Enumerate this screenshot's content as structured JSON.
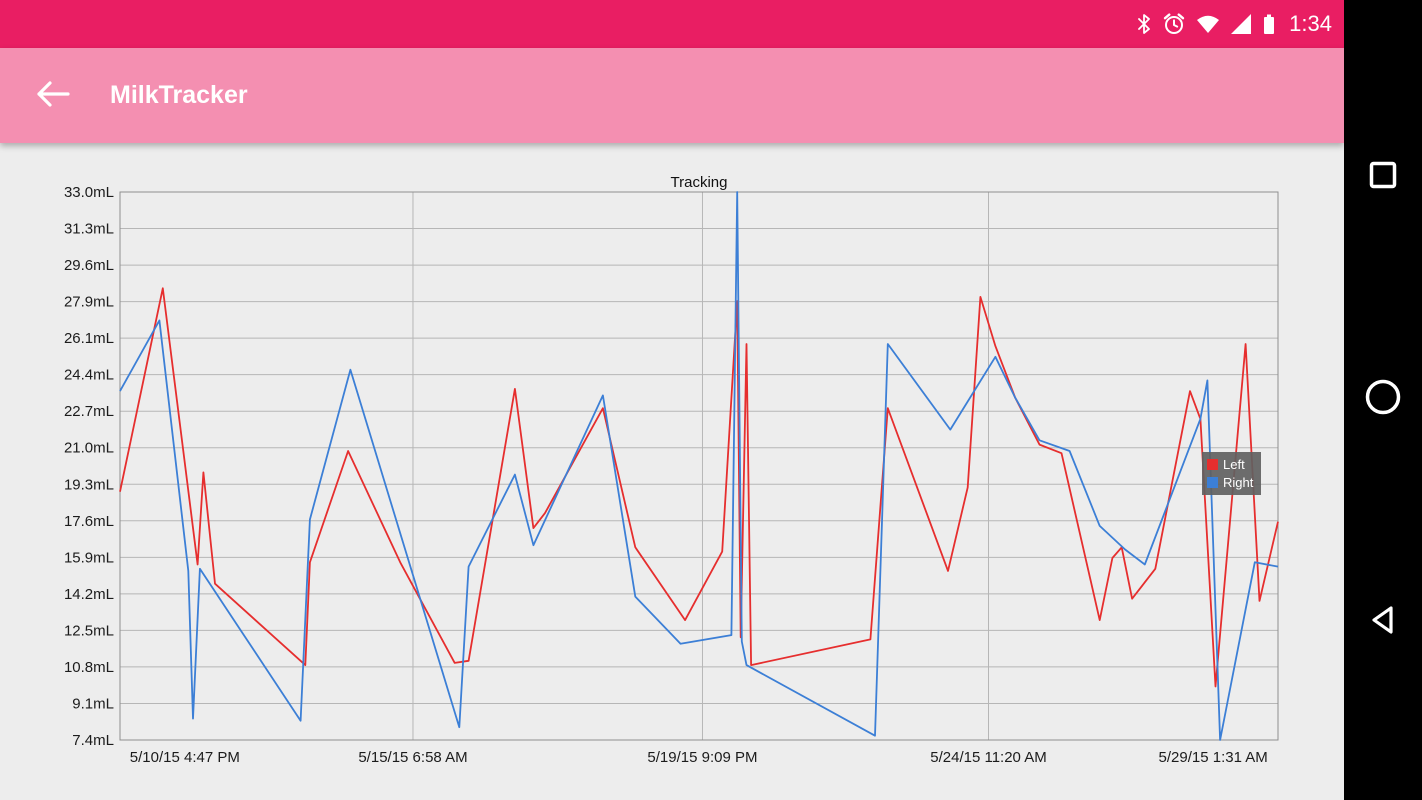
{
  "status_bar": {
    "time": "1:34",
    "icons": [
      "bluetooth-icon",
      "alarm-icon",
      "wifi-icon",
      "signal-strength-icon",
      "battery-icon"
    ]
  },
  "app_bar": {
    "title": "MilkTracker",
    "back_button": "back-arrow"
  },
  "nav_bar": {
    "buttons": [
      "recents",
      "home",
      "back"
    ]
  },
  "colors": {
    "status_bar_bg": "#e91e63",
    "app_bar_bg": "#f48fb1",
    "content_bg": "#ededed",
    "nav_bar_bg": "#000000",
    "grid_line": "#b6b6b6",
    "grid_border": "#8f8f8f",
    "axis_text": "#1c1c1c",
    "left_series": "#e62e2e",
    "right_series": "#3c7fd6",
    "legend_bg": "rgba(97,97,97,0.92)"
  },
  "chart_data": {
    "type": "line",
    "title": "Tracking",
    "y_unit": "mL",
    "y_min": 7.4,
    "y_max": 33.0,
    "y_ticks": [
      "33.0mL",
      "31.3mL",
      "29.6mL",
      "27.9mL",
      "26.1mL",
      "24.4mL",
      "22.7mL",
      "21.0mL",
      "19.3mL",
      "17.6mL",
      "15.9mL",
      "14.2mL",
      "12.5mL",
      "10.8mL",
      "9.1mL",
      "7.4mL"
    ],
    "x_ticks": [
      "5/10/15 4:47 PM",
      "5/15/15 6:58 AM",
      "5/19/15 9:09 PM",
      "5/24/15 11:20 AM",
      "5/29/15 1:31 AM"
    ],
    "x_tick_positions": [
      0,
      25.3,
      50.3,
      75.0,
      100
    ],
    "x_label_positions": [
      5.6,
      25.3,
      50.3,
      75.0,
      94.4
    ],
    "grid": true,
    "legend_position": "right-middle",
    "legend": [
      {
        "name": "Left",
        "color": "#e62e2e"
      },
      {
        "name": "Right",
        "color": "#3c7fd6"
      }
    ],
    "series": [
      {
        "name": "Left",
        "color": "#e62e2e",
        "points": [
          [
            0,
            19.0
          ],
          [
            3.7,
            28.5
          ],
          [
            6.7,
            15.6
          ],
          [
            7.2,
            19.9
          ],
          [
            8.2,
            14.7
          ],
          [
            16.0,
            10.9
          ],
          [
            16.4,
            15.7
          ],
          [
            19.7,
            20.9
          ],
          [
            24.2,
            15.7
          ],
          [
            28.9,
            11.0
          ],
          [
            30.1,
            11.1
          ],
          [
            34.1,
            23.8
          ],
          [
            35.7,
            17.3
          ],
          [
            36.7,
            18.0
          ],
          [
            41.7,
            22.9
          ],
          [
            44.5,
            16.4
          ],
          [
            48.8,
            13.0
          ],
          [
            52.0,
            16.2
          ],
          [
            53.3,
            27.9
          ],
          [
            53.6,
            12.2
          ],
          [
            54.1,
            25.9
          ],
          [
            54.5,
            10.9
          ],
          [
            64.8,
            12.1
          ],
          [
            66.3,
            22.9
          ],
          [
            71.5,
            15.3
          ],
          [
            73.2,
            19.2
          ],
          [
            74.3,
            28.1
          ],
          [
            75.6,
            25.8
          ],
          [
            77.3,
            23.4
          ],
          [
            79.4,
            21.2
          ],
          [
            81.3,
            20.8
          ],
          [
            84.6,
            13.0
          ],
          [
            85.7,
            15.9
          ],
          [
            86.5,
            16.4
          ],
          [
            87.4,
            14.0
          ],
          [
            89.4,
            15.4
          ],
          [
            92.4,
            23.7
          ],
          [
            93.3,
            22.4
          ],
          [
            94.6,
            9.9
          ],
          [
            97.2,
            25.9
          ],
          [
            98.4,
            13.9
          ],
          [
            100,
            17.6
          ]
        ]
      },
      {
        "name": "Right",
        "color": "#3c7fd6",
        "points": [
          [
            0,
            23.7
          ],
          [
            3.4,
            27.0
          ],
          [
            5.9,
            15.3
          ],
          [
            6.3,
            8.4
          ],
          [
            6.9,
            15.4
          ],
          [
            15.6,
            8.3
          ],
          [
            16.4,
            17.7
          ],
          [
            19.9,
            24.7
          ],
          [
            29.3,
            8.0
          ],
          [
            30.1,
            15.5
          ],
          [
            34.1,
            19.8
          ],
          [
            35.7,
            16.5
          ],
          [
            41.7,
            23.5
          ],
          [
            44.5,
            14.1
          ],
          [
            48.4,
            11.9
          ],
          [
            52.8,
            12.3
          ],
          [
            53.3,
            33.0
          ],
          [
            53.7,
            12.0
          ],
          [
            54.1,
            10.9
          ],
          [
            65.2,
            7.6
          ],
          [
            66.3,
            25.9
          ],
          [
            71.7,
            21.9
          ],
          [
            75.6,
            25.3
          ],
          [
            77.3,
            23.4
          ],
          [
            79.4,
            21.4
          ],
          [
            82.0,
            20.9
          ],
          [
            84.6,
            17.4
          ],
          [
            86.8,
            16.3
          ],
          [
            88.5,
            15.6
          ],
          [
            93.3,
            22.4
          ],
          [
            93.9,
            24.2
          ],
          [
            95.0,
            7.4
          ],
          [
            98.0,
            15.7
          ],
          [
            100,
            15.5
          ]
        ]
      }
    ]
  }
}
